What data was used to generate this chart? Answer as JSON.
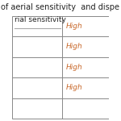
{
  "title": "of aerial sensitivity  and dispe",
  "col1_header": "rial sensitivity",
  "col2_values": [
    "High",
    "High",
    "High",
    "High"
  ],
  "diagonal_line": true,
  "bg_color": "#ffffff",
  "border_color": "#888888",
  "text_color_orange": "#c8682a",
  "text_color_black": "#222222",
  "title_fontsize": 7,
  "cell_fontsize": 6.5
}
